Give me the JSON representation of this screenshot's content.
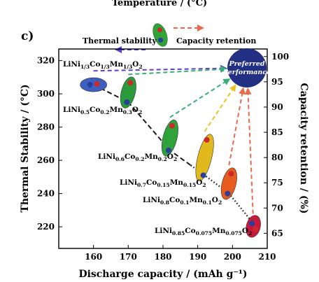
{
  "header_label": "Temperature / (°C)",
  "panel_label": "c)",
  "legend": {
    "thermal_label": "Thermal stability",
    "capacity_label": "Capacity retention"
  },
  "preferred": {
    "line1": "Preferred",
    "line2": "Performance"
  },
  "colors": {
    "thermal_dot": "#2a3f9c",
    "capacity_dot": "#cc2a2a",
    "arrow_thermal": "#5b3fc9",
    "arrow_curve": "#2a2a2a",
    "preferred_fill": "#232f82"
  },
  "chart_data": {
    "type": "scatter",
    "xlabel": "Discharge capacity / (mAh g⁻¹)",
    "ylabel": "Thermal Stability / (°C)",
    "y2label": "Capacity retention / (%)",
    "xlim": [
      150,
      210
    ],
    "ylim": [
      207,
      327
    ],
    "y2lim": [
      62,
      101.5
    ],
    "xticks": [
      160,
      170,
      180,
      190,
      200,
      210
    ],
    "yticks": [
      220,
      240,
      260,
      280,
      300,
      320
    ],
    "y2ticks": [
      65,
      70,
      75,
      80,
      85,
      90,
      95,
      100
    ],
    "materials": [
      {
        "name": "LiNi1/3Co1/3Mn1/3O2",
        "capacity": 160,
        "thermal": 305.5,
        "retention": 95.5,
        "color": "#3d5fbf",
        "label_parts": [
          [
            "LiNi",
            ""
          ],
          [
            "1/3",
            "s"
          ],
          [
            "Co",
            ""
          ],
          [
            "1/3",
            "s"
          ],
          [
            "Mn",
            ""
          ],
          [
            "1/3",
            "s"
          ],
          [
            "O",
            ""
          ],
          [
            "2",
            "s"
          ]
        ]
      },
      {
        "name": "LiNi0.5Co0.2Mn0.3O2",
        "capacity": 170,
        "thermal": 295,
        "retention": 94.8,
        "color": "#2a9a3a",
        "label_parts": [
          [
            "LiNi",
            ""
          ],
          [
            "0.5",
            "s"
          ],
          [
            "Co",
            ""
          ],
          [
            "0.2",
            "s"
          ],
          [
            "Mn",
            ""
          ],
          [
            "0.3",
            "s"
          ],
          [
            "O",
            ""
          ],
          [
            "2",
            "s"
          ]
        ]
      },
      {
        "name": "LiNi0.6Co0.2Mn0.2O2",
        "capacity": 182,
        "thermal": 266,
        "retention": 86.3,
        "color": "#2fa33a",
        "label_parts": [
          [
            "LiNi",
            ""
          ],
          [
            "0.6",
            "s"
          ],
          [
            "Co",
            ""
          ],
          [
            "0.2",
            "s"
          ],
          [
            "Mn",
            ""
          ],
          [
            "0.2",
            "s"
          ],
          [
            "O",
            ""
          ],
          [
            "2",
            "s"
          ]
        ]
      },
      {
        "name": "LiNi0.7Co0.15Mn0.15O2",
        "capacity": 192,
        "thermal": 251,
        "retention": 83.5,
        "color": "#e2b91c",
        "label_parts": [
          [
            "LiNi",
            ""
          ],
          [
            "0.7",
            "s"
          ],
          [
            "Co",
            ""
          ],
          [
            "0.15",
            "s"
          ],
          [
            "Mn",
            ""
          ],
          [
            "0.15",
            "s"
          ],
          [
            "O",
            ""
          ],
          [
            "2",
            "s"
          ]
        ]
      },
      {
        "name": "LiNi0.8Co0.1Mn0.1O2",
        "capacity": 199,
        "thermal": 240,
        "retention": 76.8,
        "color": "#e85b1e",
        "label_parts": [
          [
            "LiNi",
            ""
          ],
          [
            "0.8",
            "s"
          ],
          [
            "Co",
            ""
          ],
          [
            "0.1",
            "s"
          ],
          [
            "Mn",
            ""
          ],
          [
            "0.1",
            "s"
          ],
          [
            "O",
            ""
          ],
          [
            "2",
            "s"
          ]
        ]
      },
      {
        "name": "LiNi0.85Co0.075Mn0.075O2",
        "capacity": 206,
        "thermal": 222,
        "retention": 65.8,
        "color": "#c8193c",
        "label_parts": [
          [
            "LiNi",
            ""
          ],
          [
            "0.85",
            "s"
          ],
          [
            "Co",
            ""
          ],
          [
            "0.075",
            "s"
          ],
          [
            "Mn",
            ""
          ],
          [
            "0.075",
            "s"
          ],
          [
            "O",
            ""
          ],
          [
            "2",
            "s"
          ]
        ]
      }
    ]
  }
}
